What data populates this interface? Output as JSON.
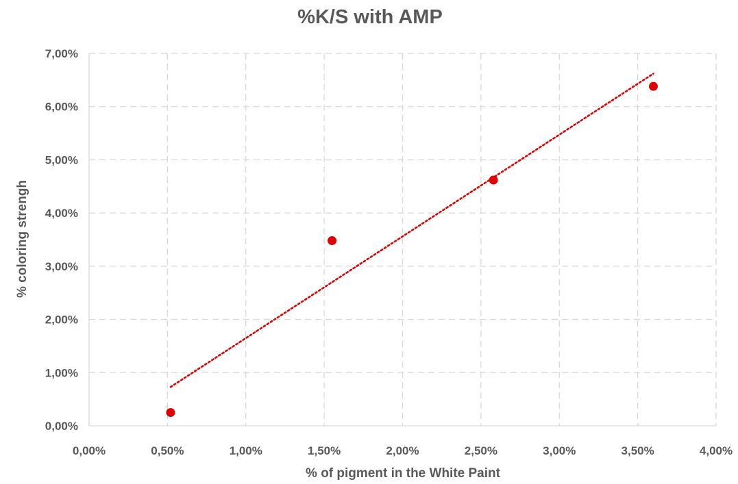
{
  "chart_data": {
    "type": "scatter",
    "title": "%K/S with AMP",
    "xlabel": "% of pigment in the White Paint",
    "ylabel": "% coloring strengh",
    "xlim": [
      0,
      4
    ],
    "ylim": [
      0,
      7
    ],
    "x_ticks": [
      "0,00%",
      "0,50%",
      "1,00%",
      "1,50%",
      "2,00%",
      "2,50%",
      "3,00%",
      "3,50%",
      "4,00%"
    ],
    "y_ticks": [
      "0,00%",
      "1,00%",
      "2,00%",
      "3,00%",
      "4,00%",
      "5,00%",
      "6,00%",
      "7,00%"
    ],
    "grid": true,
    "series": [
      {
        "x": [
          0.52,
          1.55,
          2.58,
          3.6
        ],
        "y": [
          0.25,
          3.48,
          4.62,
          6.38
        ],
        "color": "#e00000"
      }
    ],
    "trendline": {
      "type": "linear",
      "x": [
        0.52,
        3.6
      ],
      "y": [
        0.73,
        6.62
      ],
      "color": "#e00000",
      "style": "dotted"
    }
  }
}
